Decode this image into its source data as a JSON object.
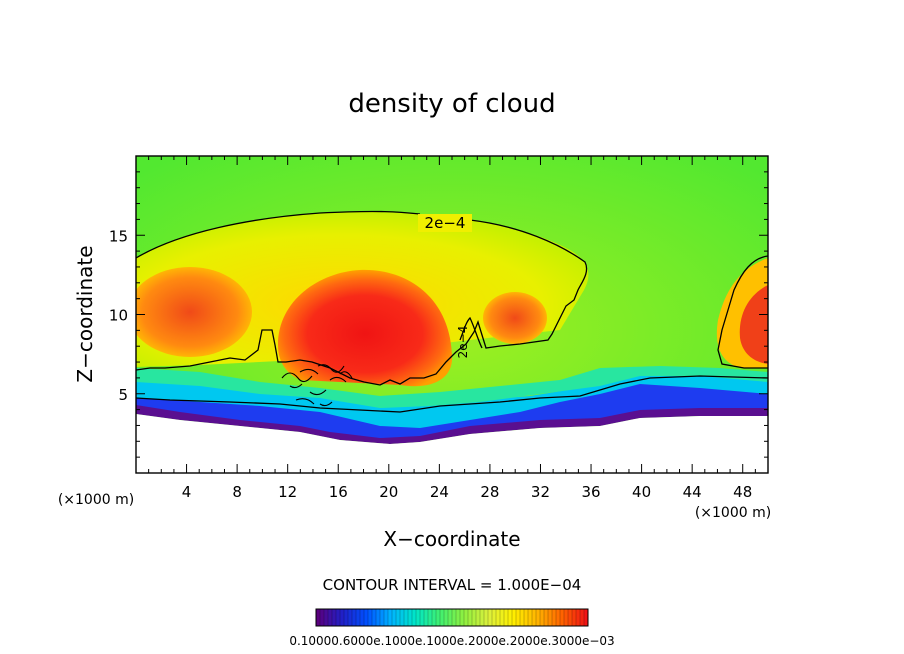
{
  "chart_data": {
    "type": "heatmap",
    "title": "density of cloud",
    "xlabel": "X−coordinate",
    "ylabel": "Z−coordinate",
    "x_unit": "(×1000 m)",
    "y_unit": "(×1000 m)",
    "xlim": [
      0,
      50
    ],
    "ylim": [
      0,
      20
    ],
    "x_ticks": [
      "4",
      "8",
      "12",
      "16",
      "20",
      "24",
      "28",
      "32",
      "36",
      "40",
      "44",
      "48"
    ],
    "y_ticks": [
      "5",
      "10",
      "15"
    ],
    "contour_label_main": "2e−4",
    "contour_label_tower": "2e−4",
    "contour_interval": "CONTOUR INTERVAL = 1.000E−04",
    "colorbar_labels": "0.10000.6000e.1000e.1000e.2000e.2000e.3000e−03",
    "colorbar_colors": [
      "#5a007f",
      "#2020c8",
      "#0050ff",
      "#00b4ff",
      "#00e6c8",
      "#40f070",
      "#90f040",
      "#dcf03c",
      "#fff000",
      "#ffb400",
      "#ff6400",
      "#f01414"
    ],
    "field_colors": {
      "low": "#4a0f8a",
      "blue": "#1e3cf0",
      "cyan": "#00c8ff",
      "teal": "#1ee6a0",
      "green": "#46eb37",
      "yellow_green": "#b4f000",
      "yellow": "#f0f000",
      "orange": "#ff9600",
      "red": "#f01e1e"
    }
  }
}
